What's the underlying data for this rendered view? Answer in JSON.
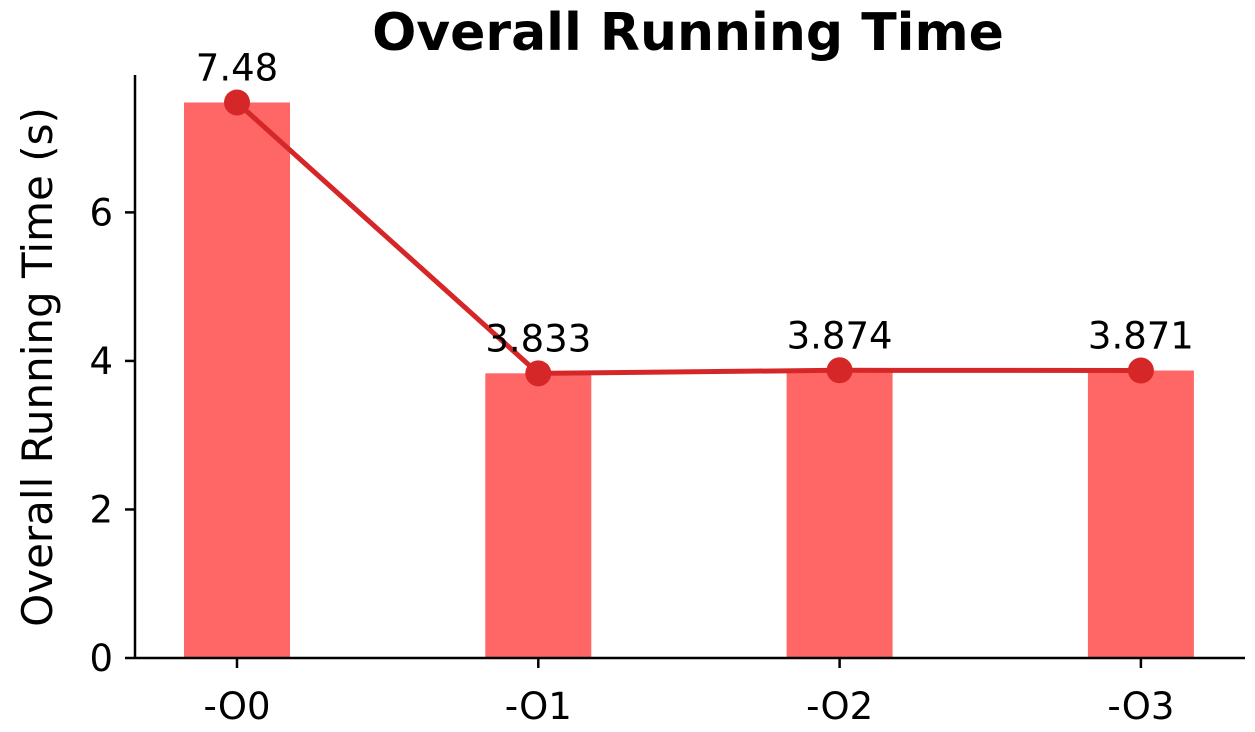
{
  "chart_data": {
    "type": "bar",
    "title": "Overall Running Time",
    "xlabel": "",
    "ylabel": "Overall Running Time (s)",
    "categories": [
      "-O0",
      "-O1",
      "-O2",
      "-O3"
    ],
    "values": [
      7.48,
      3.833,
      3.874,
      3.871
    ],
    "data_labels": [
      "7.48",
      "3.833",
      "3.874",
      "3.871"
    ],
    "overlay_line": true,
    "ylim": [
      0,
      7.85
    ],
    "yticks": [
      0,
      2,
      4,
      6
    ],
    "ytick_labels": [
      "0",
      "2",
      "4",
      "6"
    ],
    "grid": false,
    "legend": "none",
    "colors": {
      "bar": "#ff6666",
      "line": "#d62728",
      "marker": "#d62728",
      "axis": "#000000"
    }
  }
}
